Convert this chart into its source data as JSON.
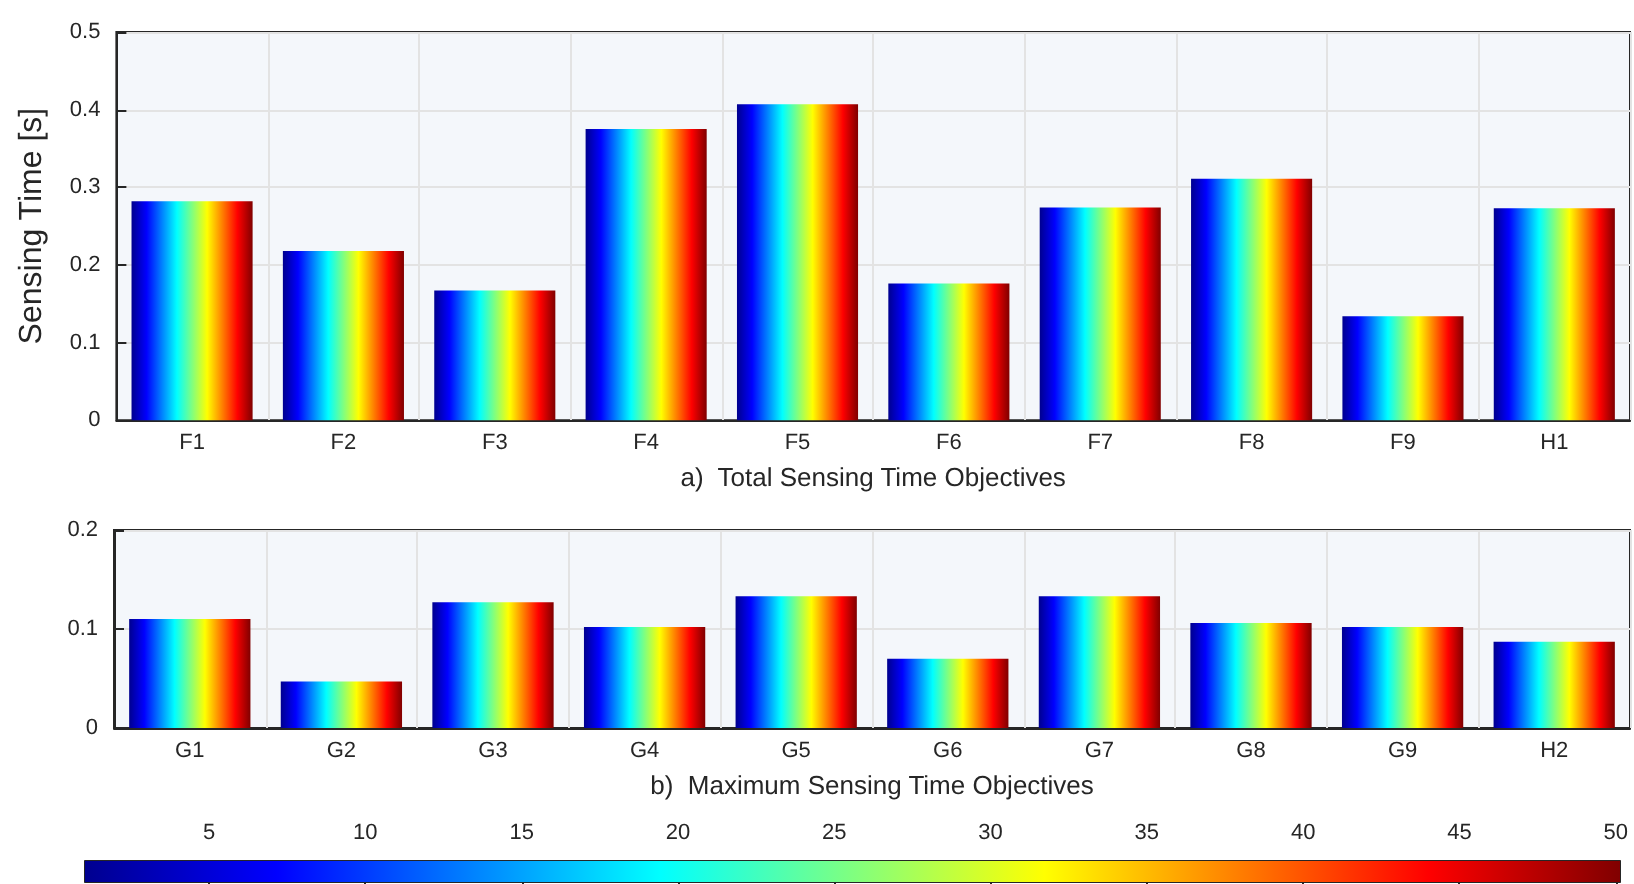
{
  "chart_data": [
    {
      "type": "bar",
      "xlabel": "a)  Total Sensing Time Objectives",
      "ylabel": "Sensing Time [s]",
      "categories": [
        "F1",
        "F2",
        "F3",
        "F4",
        "F5",
        "F6",
        "F7",
        "F8",
        "F9",
        "H1"
      ],
      "values": [
        0.282,
        0.218,
        0.167,
        0.375,
        0.407,
        0.176,
        0.274,
        0.311,
        0.134,
        0.273
      ],
      "ylim": [
        0,
        0.5
      ],
      "yticks": [
        0,
        0.1,
        0.2,
        0.3,
        0.4,
        0.5
      ],
      "grid": true
    },
    {
      "type": "bar",
      "xlabel": "b)  Maximum Sensing Time Objectives",
      "categories": [
        "G1",
        "G2",
        "G3",
        "G4",
        "G5",
        "G6",
        "G7",
        "G8",
        "G9",
        "H2"
      ],
      "values": [
        0.11,
        0.047,
        0.127,
        0.102,
        0.133,
        0.07,
        0.133,
        0.106,
        0.102,
        0.087
      ],
      "ylim": [
        0,
        0.2
      ],
      "yticks": [
        0,
        0.1,
        0.2
      ],
      "grid": true,
      "clim": [
        1,
        50
      ],
      "cticks": [
        5,
        10,
        15,
        20,
        25,
        30,
        35,
        40,
        45,
        50
      ]
    }
  ]
}
